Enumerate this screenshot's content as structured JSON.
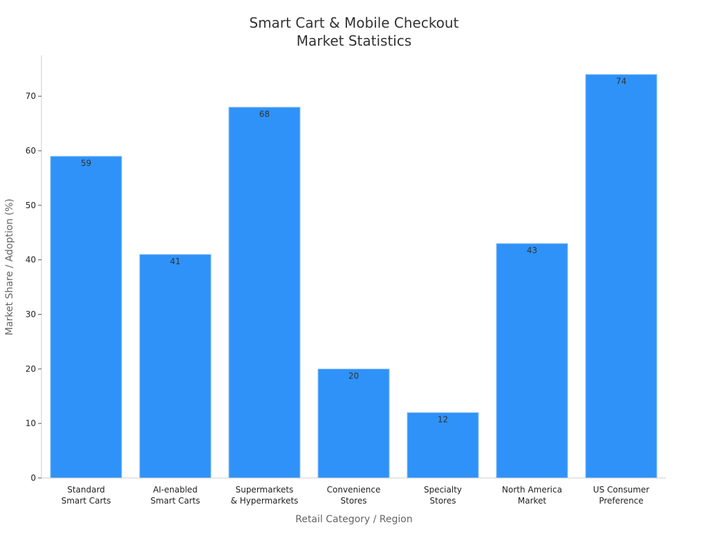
{
  "chart_data": {
    "type": "bar",
    "title_lines": [
      "Smart Cart & Mobile Checkout",
      "Market Statistics"
    ],
    "xlabel": "Retail Category / Region",
    "ylabel": "Market Share / Adoption (%)",
    "categories": [
      [
        "Standard",
        "Smart Carts"
      ],
      [
        "AI-enabled",
        "Smart Carts"
      ],
      [
        "Supermarkets",
        "& Hypermarkets"
      ],
      [
        "Convenience",
        "Stores"
      ],
      [
        "Specialty",
        "Stores"
      ],
      [
        "North America",
        "Market"
      ],
      [
        "US Consumer",
        "Preference"
      ]
    ],
    "values": [
      59,
      41,
      68,
      20,
      12,
      43,
      74
    ],
    "data_labels": [
      "59",
      "41",
      "68",
      "20",
      "12",
      "43",
      "74"
    ],
    "yticks": [
      0,
      10,
      20,
      30,
      40,
      50,
      60,
      70
    ],
    "ylim": [
      0,
      77.5
    ],
    "grid": false,
    "bar_color": "#2f92f8",
    "bar_edge_color": "#a8cdf5"
  }
}
